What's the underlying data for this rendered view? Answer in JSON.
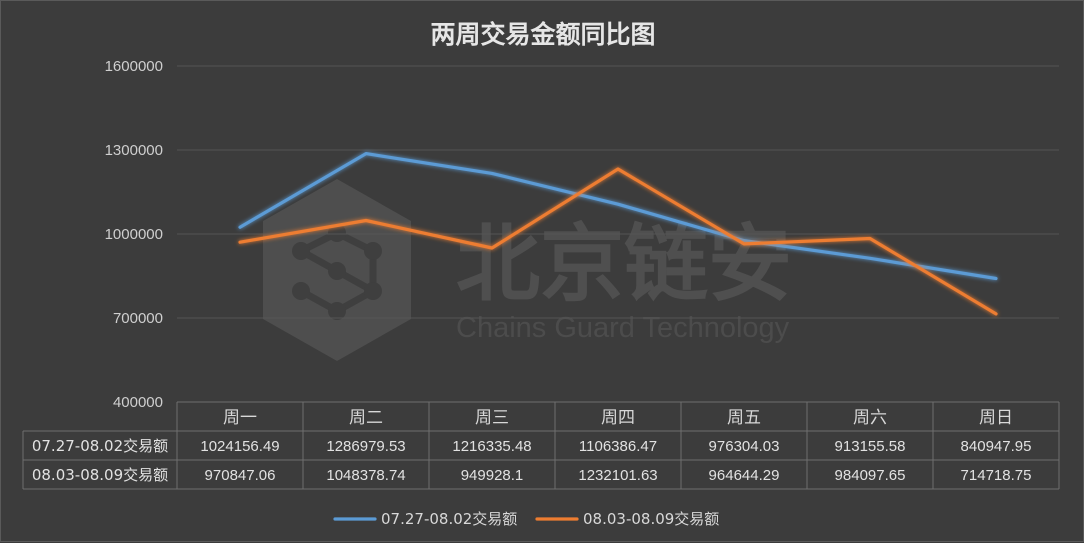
{
  "chart_data": {
    "type": "line",
    "title": "两周交易金额同比图",
    "categories": [
      "周一",
      "周二",
      "周三",
      "周四",
      "周五",
      "周六",
      "周日"
    ],
    "ylim": [
      400000,
      1600000
    ],
    "yticks": [
      "400000",
      "700000",
      "1000000",
      "1300000",
      "1600000"
    ],
    "grid": true,
    "legend_position": "bottom",
    "series": [
      {
        "name": "07.27-08.02交易额",
        "color": "#5b9bd5",
        "values": [
          1024156.49,
          1286979.53,
          1216335.48,
          1106386.47,
          976304.03,
          913155.58,
          840947.95
        ],
        "labels": [
          "1024156.49",
          "1286979.53",
          "1216335.48",
          "1106386.47",
          "976304.03",
          "913155.58",
          "840947.95"
        ]
      },
      {
        "name": "08.03-08.09交易额",
        "color": "#ed7d31",
        "values": [
          970847.06,
          1048378.74,
          949928.1,
          1232101.63,
          964644.29,
          984097.65,
          714718.75
        ],
        "labels": [
          "970847.06",
          "1048378.74",
          "949928.1",
          "1232101.63",
          "964644.29",
          "984097.65",
          "714718.75"
        ]
      }
    ]
  },
  "watermark": {
    "text_cn": "北京链安",
    "text_en": "Chains Guard Technology",
    "logo_icon": "hexagon-molecule-logo"
  }
}
